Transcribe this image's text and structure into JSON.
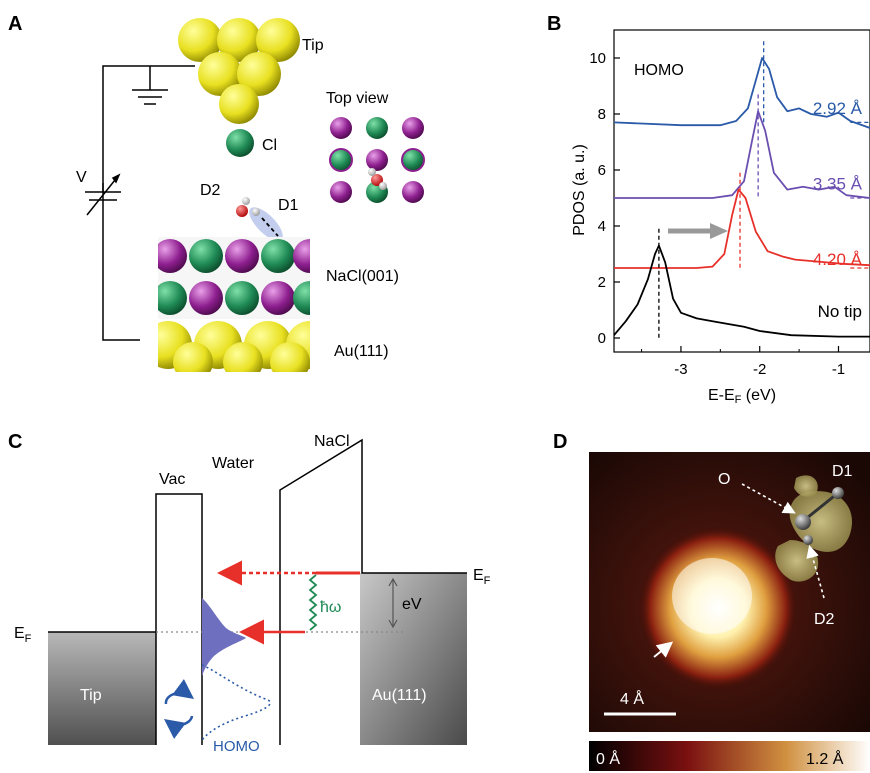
{
  "panels": {
    "A": {
      "letter": "A",
      "tip": "Tip",
      "cl": "Cl",
      "top_view": "Top view",
      "voltage": "V",
      "d2": "D2",
      "d1": "D1",
      "nacl": "NaCl(001)",
      "au": "Au(111)"
    },
    "B": {
      "letter": "B",
      "annotation": "HOMO",
      "no_tip": "No tip"
    },
    "C": {
      "letter": "C",
      "vac": "Vac",
      "water": "Water",
      "nacl": "NaCl",
      "ef_right_main": "E",
      "ef_right_sub": "F",
      "ef_left_main": "E",
      "ef_left_sub": "F",
      "ev": "eV",
      "hw": "ħω",
      "tip": "Tip",
      "au": "Au(111)",
      "homo": "HOMO"
    },
    "D": {
      "letter": "D",
      "o": "O",
      "d1": "D1",
      "d2": "D2",
      "scale": "4 Å",
      "cbar_min": "0 Å",
      "cbar_max": "1.2 Å"
    }
  },
  "colors": {
    "gold": "#e8e020",
    "cl_green": "#1f8a55",
    "na_purple": "#8e1f8f",
    "curve_blue": "#2a5aa8",
    "curve_purple": "#6a4fb0",
    "curve_red": "#e8302a",
    "homo_fill": "#6f6fc0"
  },
  "chart_data": {
    "type": "line",
    "xlabel_main": "E-E",
    "xlabel_sub": "F",
    "xlabel_unit": " (eV)",
    "ylabel": "PDOS (a. u.)",
    "xlim": [
      -3.85,
      -0.6
    ],
    "ylim": [
      -0.5,
      11
    ],
    "xticks": [
      -3,
      -2,
      -1
    ],
    "yticks": [
      0,
      2,
      4,
      6,
      8,
      10
    ],
    "series": [
      {
        "name": "2.92 Å",
        "color": "#2a5aa8",
        "baseline": 7.7,
        "peak_x": -1.95,
        "peak_y": 10.0,
        "points": [
          [
            -3.85,
            7.7
          ],
          [
            -3.0,
            7.6
          ],
          [
            -2.5,
            7.6
          ],
          [
            -2.3,
            7.75
          ],
          [
            -2.15,
            8.2
          ],
          [
            -2.05,
            9.2
          ],
          [
            -1.97,
            10.0
          ],
          [
            -1.88,
            9.6
          ],
          [
            -1.78,
            8.6
          ],
          [
            -1.65,
            8.1
          ],
          [
            -1.5,
            8.2
          ],
          [
            -1.35,
            8.0
          ],
          [
            -1.15,
            7.9
          ],
          [
            -1.0,
            8.05
          ],
          [
            -0.85,
            7.75
          ],
          [
            -0.6,
            7.5
          ]
        ]
      },
      {
        "name": "3.35 Å",
        "color": "#6a4fb0",
        "baseline": 5.0,
        "peak_x": -2.02,
        "peak_y": 8.1,
        "points": [
          [
            -3.85,
            5.0
          ],
          [
            -2.6,
            5.0
          ],
          [
            -2.35,
            5.1
          ],
          [
            -2.2,
            5.6
          ],
          [
            -2.1,
            7.0
          ],
          [
            -2.02,
            8.1
          ],
          [
            -1.93,
            7.4
          ],
          [
            -1.82,
            5.9
          ],
          [
            -1.65,
            5.3
          ],
          [
            -1.45,
            5.4
          ],
          [
            -1.25,
            5.3
          ],
          [
            -1.05,
            5.4
          ],
          [
            -0.9,
            5.1
          ],
          [
            -0.6,
            5.0
          ]
        ]
      },
      {
        "name": "4.20 Å",
        "color": "#e8302a",
        "baseline": 2.5,
        "peak_x": -2.25,
        "peak_y": 5.3,
        "points": [
          [
            -3.85,
            2.5
          ],
          [
            -2.8,
            2.5
          ],
          [
            -2.6,
            2.55
          ],
          [
            -2.45,
            3.0
          ],
          [
            -2.35,
            4.4
          ],
          [
            -2.27,
            5.3
          ],
          [
            -2.18,
            5.0
          ],
          [
            -2.05,
            3.8
          ],
          [
            -1.9,
            3.1
          ],
          [
            -1.7,
            2.9
          ],
          [
            -1.55,
            2.8
          ],
          [
            -1.35,
            2.75
          ],
          [
            -1.15,
            2.7
          ],
          [
            -0.95,
            2.65
          ],
          [
            -0.6,
            2.6
          ]
        ]
      },
      {
        "name": "No tip",
        "color": "#000000",
        "baseline": 0.0,
        "peak_x": -3.28,
        "peak_y": 3.3,
        "points": [
          [
            -3.85,
            0.1
          ],
          [
            -3.7,
            0.6
          ],
          [
            -3.55,
            1.2
          ],
          [
            -3.42,
            2.1
          ],
          [
            -3.33,
            3.0
          ],
          [
            -3.28,
            3.3
          ],
          [
            -3.2,
            2.7
          ],
          [
            -3.1,
            1.4
          ],
          [
            -3.0,
            0.9
          ],
          [
            -2.8,
            0.7
          ],
          [
            -2.6,
            0.6
          ],
          [
            -2.4,
            0.5
          ],
          [
            -2.2,
            0.4
          ],
          [
            -2.0,
            0.25
          ],
          [
            -1.6,
            0.1
          ],
          [
            -1.0,
            0.05
          ],
          [
            -0.6,
            0.05
          ]
        ]
      }
    ],
    "labels_y": [
      8.0,
      5.3,
      2.6,
      0.75
    ]
  }
}
